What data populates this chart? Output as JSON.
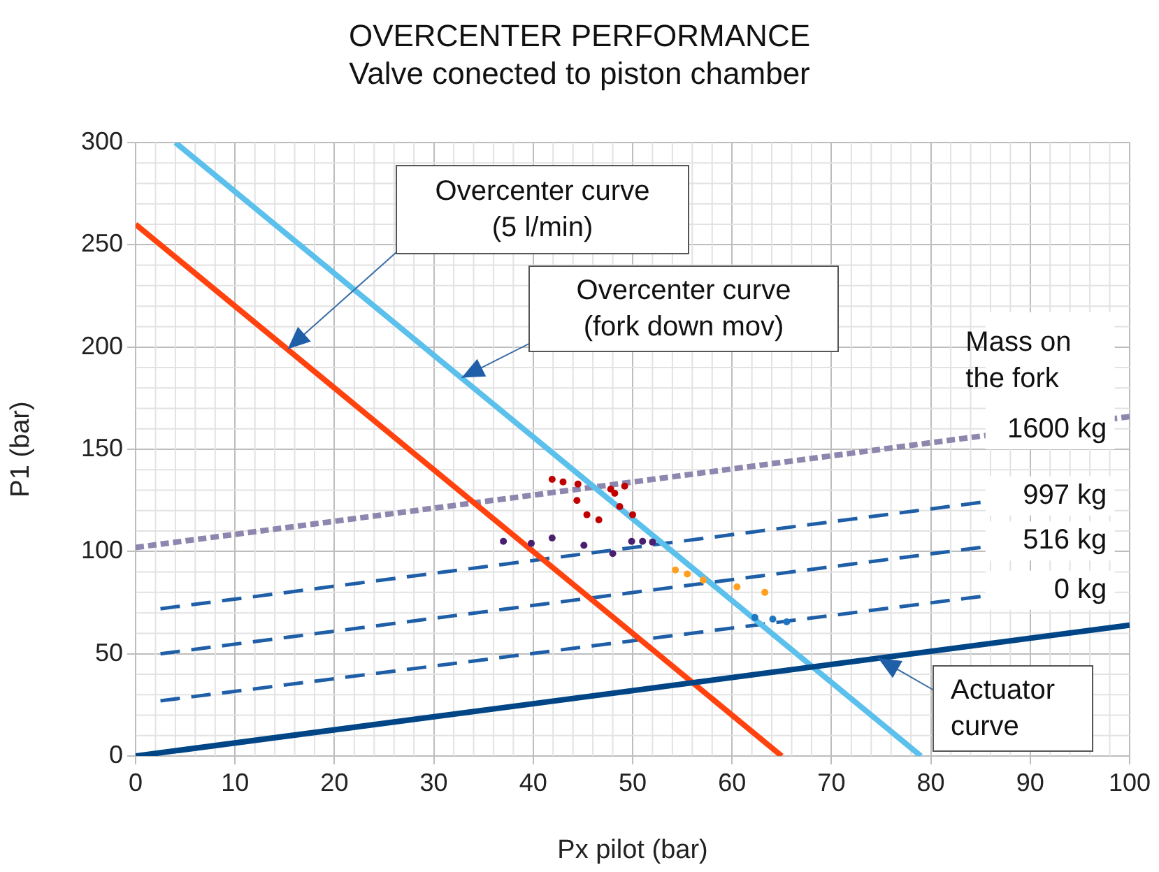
{
  "chart_data": {
    "type": "line",
    "title": "OVERCENTER PERFORMANCE",
    "subtitle": "Valve conected to piston chamber",
    "xlabel": "Px pilot (bar)",
    "ylabel": "P1 (bar)",
    "xlim": [
      0,
      100
    ],
    "xticks": [
      0,
      10,
      20,
      30,
      40,
      50,
      60,
      70,
      80,
      90,
      100
    ],
    "ylim": [
      0,
      300
    ],
    "yticks": [
      0,
      50,
      100,
      150,
      200,
      250,
      300
    ],
    "grid": true,
    "legend": false,
    "legend_title": "Mass on\nthe fork",
    "series": [
      {
        "type": "line",
        "color": "#004586",
        "line_style": "solid",
        "x": [
          0,
          100
        ],
        "values": [
          0,
          64
        ]
      },
      {
        "type": "line",
        "color": "#ff420e",
        "line_style": "solid",
        "x": [
          0,
          65
        ],
        "values": [
          260,
          0
        ]
      },
      {
        "type": "line",
        "color": "#5bc0eb",
        "line_style": "solid",
        "x": [
          4,
          79
        ],
        "values": [
          300,
          0
        ]
      },
      {
        "type": "line",
        "name": "1600 kg",
        "color": "#8e86ae",
        "line_style": "dotted",
        "x": [
          0,
          100
        ],
        "values": [
          102,
          166
        ]
      },
      {
        "type": "line",
        "name": "997 kg",
        "color": "#1f5fa8",
        "line_style": "dashed",
        "x": [
          2.5,
          85
        ],
        "values": [
          72,
          124
        ]
      },
      {
        "type": "line",
        "name": "516 kg",
        "color": "#1f5fa8",
        "line_style": "dashed",
        "x": [
          2.5,
          85
        ],
        "values": [
          50,
          102
        ]
      },
      {
        "type": "line",
        "name": "0 kg",
        "color": "#1f5fa8",
        "line_style": "dashed",
        "x": [
          2.5,
          85
        ],
        "values": [
          27,
          78
        ]
      },
      {
        "type": "scatter",
        "color": "#c00000",
        "x": [
          41.9,
          43,
          44.5,
          47.8,
          44.4,
          45.4,
          46.6,
          48.7,
          50,
          48.2,
          49.2
        ],
        "values": [
          135.3,
          134,
          133,
          130.5,
          125,
          118,
          115.5,
          122,
          118,
          128.5,
          132
        ]
      },
      {
        "type": "scatter",
        "color": "#4b1f6f",
        "x": [
          49.9,
          51,
          52,
          37,
          39.8,
          41.9,
          45.1,
          48
        ],
        "values": [
          105,
          105,
          104.6,
          105,
          104,
          106.6,
          103,
          99
        ]
      },
      {
        "type": "scatter",
        "color": "#ffa020",
        "x": [
          54.3,
          55.5,
          57.1,
          60.5,
          63.3
        ],
        "values": [
          91,
          89,
          86,
          82.7,
          80
        ]
      },
      {
        "type": "scatter",
        "color": "#1f77c4",
        "x": [
          62.3,
          64.1,
          65.5
        ],
        "values": [
          67.7,
          67,
          65.6
        ]
      }
    ],
    "annotations": [
      {
        "text": "Overcenter curve\n(5 l/min)",
        "x": 15.3,
        "y": 199
      },
      {
        "text": "Overcenter curve\n(fork down mov)",
        "x": 32.8,
        "y": 185
      },
      {
        "text": "Actuator\ncurve",
        "x": 74.7,
        "y": 47.8
      }
    ]
  }
}
